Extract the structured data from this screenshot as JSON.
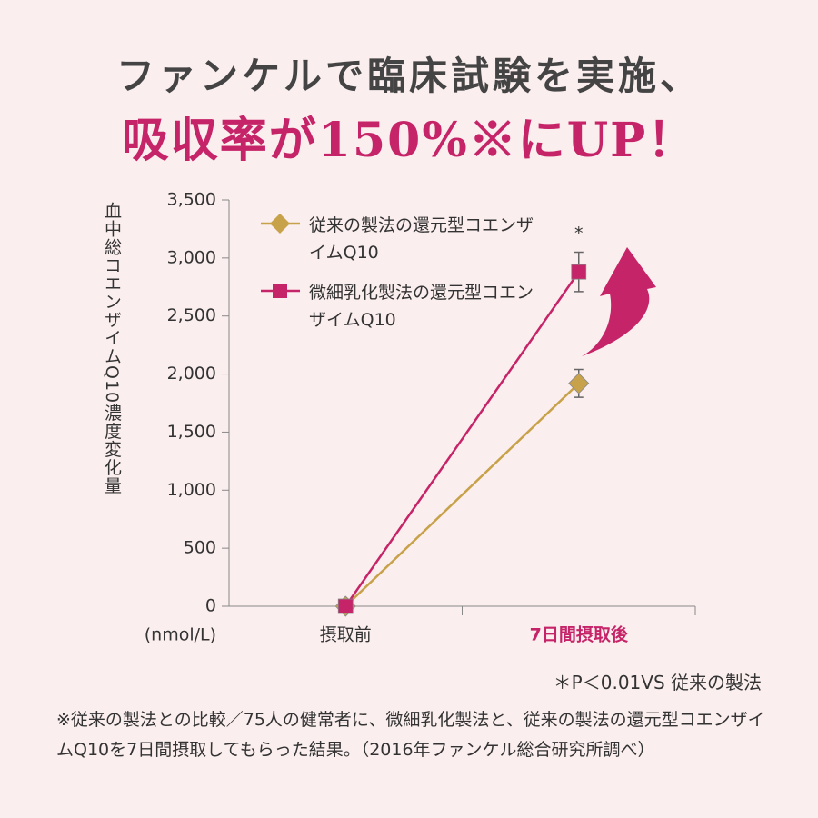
{
  "header": {
    "title_line1": "ファンケルで臨床試験を実施、",
    "title_line2": "吸収率が150%※にUP！"
  },
  "chart_data": {
    "type": "line",
    "y_label": "血中総コエンザイムQ10濃度変化量",
    "unit_label": "(nmol/L)",
    "categories": [
      "摂取前",
      "7日間摂取後"
    ],
    "series": [
      {
        "name": "従来の製法の還元型コエンザイムQ10",
        "color": "#c8a24a",
        "marker": "diamond",
        "values": [
          0,
          1920
        ],
        "errors": [
          0,
          120
        ]
      },
      {
        "name": "微細乳化製法の還元型コエンザイムQ10",
        "color": "#c62468",
        "marker": "square",
        "values": [
          0,
          2880
        ],
        "errors": [
          0,
          170
        ]
      }
    ],
    "annotation": "*",
    "ylim": [
      0,
      3500
    ],
    "yticks": [
      0,
      500,
      {
        "value": 1000,
        "label": "1,000"
      },
      {
        "value": 1500,
        "label": "1,500"
      },
      {
        "value": 2000,
        "label": "2,000"
      },
      {
        "value": 2500,
        "label": "2,500"
      },
      {
        "value": 3000,
        "label": "3,000"
      },
      {
        "value": 3500,
        "label": "3,500"
      }
    ],
    "significance_note": "＊P＜0.01VS 従来の製法"
  },
  "footnote": "※従来の製法との比較／75人の健常者に、微細乳化製法と、従来の製法の還元型コエンザイムQ10を7日間摂取してもらった結果。（2016年ファンケル総合研究所調べ）"
}
